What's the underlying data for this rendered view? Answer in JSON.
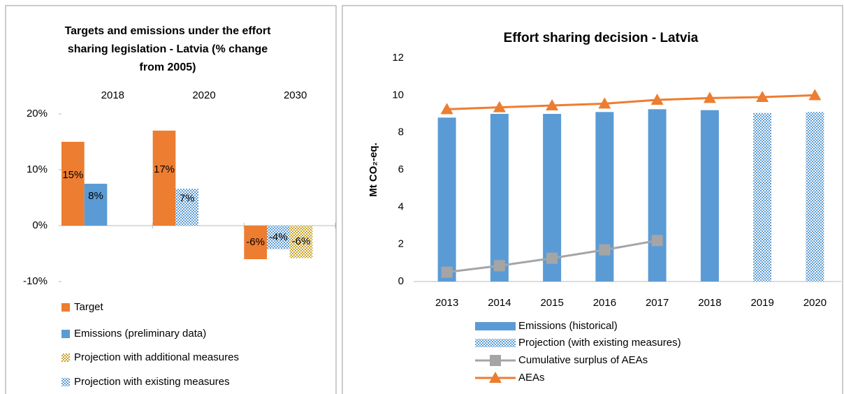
{
  "chart_data": [
    {
      "type": "bar",
      "title": "Targets and emissions under the effort sharing legislation -  Latvia (% change from 2005)",
      "categories": [
        "2018",
        "2020",
        "2030"
      ],
      "ylim": [
        -10,
        20
      ],
      "yticks": [
        {
          "value": 20,
          "label": "20%"
        },
        {
          "value": 10,
          "label": "10%"
        },
        {
          "value": 0,
          "label": "0%"
        },
        {
          "value": -10,
          "label": "-10%"
        }
      ],
      "grid": false,
      "legend": "bottom",
      "series": [
        {
          "name": "Target",
          "color": "#ED7D31",
          "values": [
            15,
            17,
            -6
          ],
          "value_labels": [
            "15%",
            "17%",
            "-6%"
          ]
        },
        {
          "name": "Emissions (preliminary data)",
          "color": "#5B9BD5",
          "values": [
            7.5,
            null,
            null
          ],
          "value_labels": [
            "8%",
            null,
            null
          ]
        },
        {
          "name": "Projection with additional measures",
          "color": "#FFC000",
          "pattern": "checkered",
          "values": [
            null,
            null,
            -5.8
          ],
          "value_labels": [
            null,
            null,
            "-6%"
          ]
        },
        {
          "name": "Projection with existing measures",
          "color": "#5B9BD5",
          "pattern": "checkered",
          "values": [
            null,
            6.6,
            -4.2
          ],
          "value_labels": [
            null,
            "7%",
            "-4%"
          ]
        }
      ]
    },
    {
      "type": "bar",
      "title": "Effort sharing decision -  Latvia",
      "y_label": "Mt CO₂-eq.",
      "categories": [
        "2013",
        "2014",
        "2015",
        "2016",
        "2017",
        "2018",
        "2019",
        "2020"
      ],
      "ylim": [
        0,
        12
      ],
      "yticks": [
        0,
        2,
        4,
        6,
        8,
        10,
        12
      ],
      "grid": false,
      "legend": "bottom",
      "series": [
        {
          "name": "Emissions (historical)",
          "color": "#5B9BD5",
          "values": [
            8.8,
            9.0,
            9.0,
            9.1,
            9.25,
            9.2,
            null,
            null
          ]
        },
        {
          "name": "Projection (with existing measures)",
          "color": "#5B9BD5",
          "pattern": "checkered",
          "values": [
            null,
            null,
            null,
            null,
            null,
            null,
            9.05,
            9.1
          ]
        },
        {
          "name": "Cumulative surplus of AEAs",
          "type": "line",
          "marker": "square",
          "color": "#A5A5A5",
          "values": [
            0.5,
            0.85,
            1.25,
            1.7,
            2.2,
            null,
            null,
            null
          ]
        },
        {
          "name": "AEAs",
          "type": "line",
          "marker": "triangle",
          "color": "#ED7D31",
          "values": [
            9.25,
            9.35,
            9.45,
            9.55,
            9.75,
            9.85,
            9.9,
            10.0
          ]
        }
      ]
    }
  ]
}
